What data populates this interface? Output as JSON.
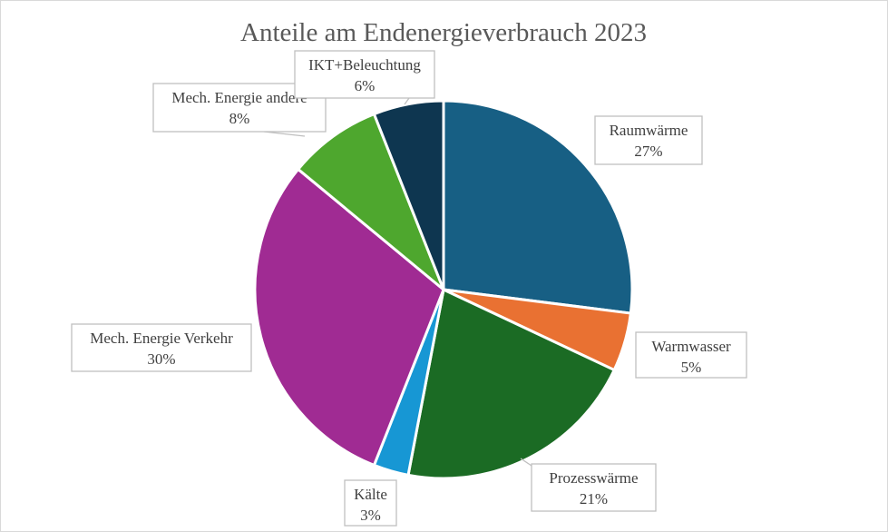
{
  "chart_data": {
    "type": "pie",
    "title": "Anteile am Endenergieverbrauch 2023",
    "slices": [
      {
        "label": "Raumwärme",
        "value": 27,
        "display": "27%",
        "color": "#175f84"
      },
      {
        "label": "Warmwasser",
        "value": 5,
        "display": "5%",
        "color": "#e97132"
      },
      {
        "label": "Prozesswärme",
        "value": 21,
        "display": "21%",
        "color": "#1b6b24"
      },
      {
        "label": "Kälte",
        "value": 3,
        "display": "3%",
        "color": "#1797d4"
      },
      {
        "label": "Mech. Energie Verkehr",
        "value": 30,
        "display": "30%",
        "color": "#a02b93"
      },
      {
        "label": "Mech. Energie andere",
        "value": 8,
        "display": "8%",
        "color": "#4ea72e"
      },
      {
        "label": "IKT+Beleuchtung",
        "value": 6,
        "display": "6%",
        "color": "#0e3650"
      }
    ],
    "start_angle_deg": 0,
    "direction": "clockwise",
    "legend": "none",
    "data_labels": "outside-callouts"
  }
}
